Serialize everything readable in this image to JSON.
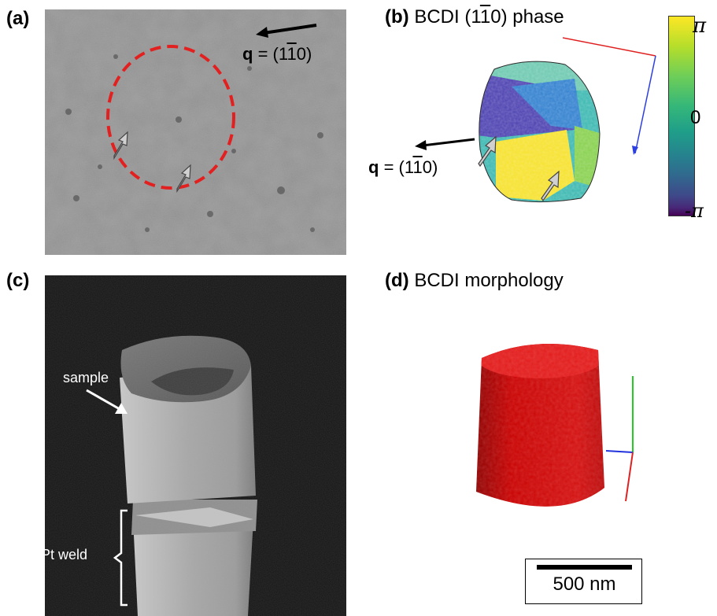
{
  "panel_a": {
    "label": "(a)",
    "q_bold": "q",
    "q_rest": " = (1",
    "q_bar": "1",
    "q_end": "0)"
  },
  "panel_b": {
    "label": "(b)",
    "title_pre": " BCDI (1",
    "title_bar": "1",
    "title_post": "0) phase",
    "q_bold": "q",
    "q_rest": " = (1",
    "q_bar": "1",
    "q_end": "0)",
    "colorbar": {
      "ticks": [
        "π",
        "0",
        "-π"
      ],
      "colors": [
        "#f9e721",
        "#35b779",
        "#31688e",
        "#440154"
      ]
    }
  },
  "panel_c": {
    "label": "(c)",
    "sample_label": "sample",
    "weld_label": "Pt weld"
  },
  "panel_d": {
    "label": "(d)",
    "title": " BCDI morphology",
    "scalebar_label": "500 nm"
  }
}
